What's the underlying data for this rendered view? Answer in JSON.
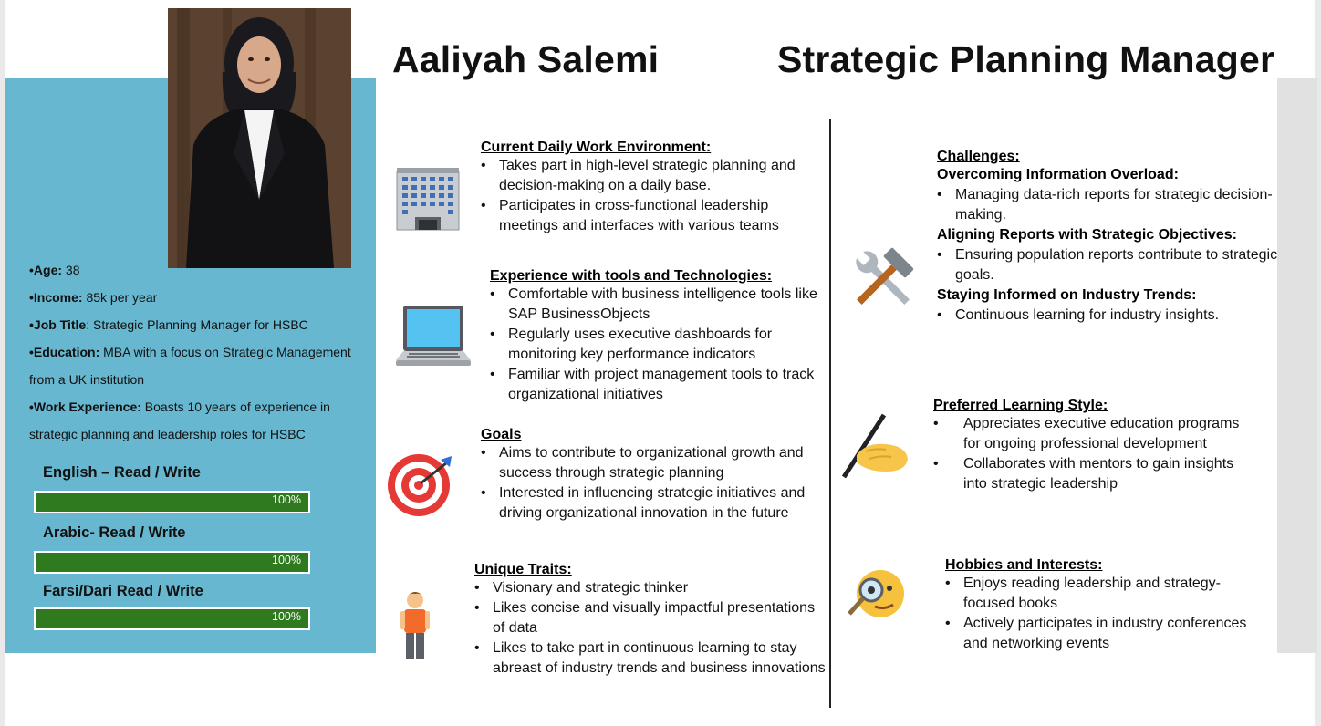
{
  "header": {
    "name": "Aaliyah Salemi",
    "title": "Strategic Planning Manager"
  },
  "profile": {
    "age_label": "•Age:",
    "age": " 38",
    "income_label": "•Income:",
    "income": " 85k per year",
    "job_label": "•Job Title",
    "job": ": Strategic Planning Manager for HSBC",
    "education_label": "•Education:",
    "education": " MBA with a focus on Strategic Management from a UK institution",
    "experience_label": "•Work Experience:",
    "experience": " Boasts 10 years of experience in strategic planning and leadership roles for HSBC"
  },
  "languages": [
    {
      "label": "English – Read / Write",
      "value": 100,
      "text": "100%"
    },
    {
      "label": "Arabic- Read / Write",
      "value": 100,
      "text": "100%"
    },
    {
      "label": "Farsi/Dari  Read / Write",
      "value": 100,
      "text": "100%"
    }
  ],
  "sections": {
    "work_env": {
      "title": "Current Daily Work Environment:",
      "items": [
        "Takes part in high-level strategic planning and decision-making on a daily base.",
        "Participates in cross-functional leadership meetings and interfaces with various teams"
      ]
    },
    "tools": {
      "title": "Experience with tools and Technologies:",
      "items": [
        "Comfortable with business intelligence tools like SAP BusinessObjects",
        "Regularly uses executive dashboards for monitoring key performance indicators",
        "Familiar with project management tools to track organizational initiatives"
      ]
    },
    "goals": {
      "title": "Goals",
      "items": [
        "Aims to contribute to organizational growth and success through strategic planning",
        "Interested in influencing strategic initiatives and driving organizational innovation in the future"
      ]
    },
    "traits": {
      "title": "Unique Traits:",
      "items": [
        "Visionary and strategic thinker",
        "Likes concise and visually impactful presentations of data",
        "Likes to take part in continuous learning to stay abreast of industry trends and business innovations"
      ]
    },
    "challenges": {
      "title": "Challenges:",
      "groups": [
        {
          "heading": "Overcoming Information Overload:",
          "items": [
            "Managing data-rich reports for strategic decision-making."
          ]
        },
        {
          "heading": "Aligning Reports with Strategic Objectives:",
          "items": [
            "Ensuring population reports contribute to strategic goals."
          ]
        },
        {
          "heading": "Staying Informed on Industry Trends:",
          "items": [
            "Continuous learning for industry insights."
          ]
        }
      ]
    },
    "learning": {
      "title": "Preferred Learning Style:",
      "items": [
        "Appreciates executive education programs for ongoing professional development",
        "Collaborates with mentors to gain insights into strategic leadership"
      ]
    },
    "hobbies": {
      "title": "Hobbies and Interests:",
      "items": [
        "Enjoys reading leadership and strategy-focused books",
        "Actively participates in industry conferences and networking events"
      ]
    }
  },
  "icons": {
    "work_env": "office-building-icon",
    "tools": "laptop-icon",
    "goals": "target-icon",
    "traits": "person-icon",
    "challenges": "hammer-wrench-icon",
    "learning": "writing-hand-icon",
    "hobbies": "magnifier-face-icon"
  }
}
